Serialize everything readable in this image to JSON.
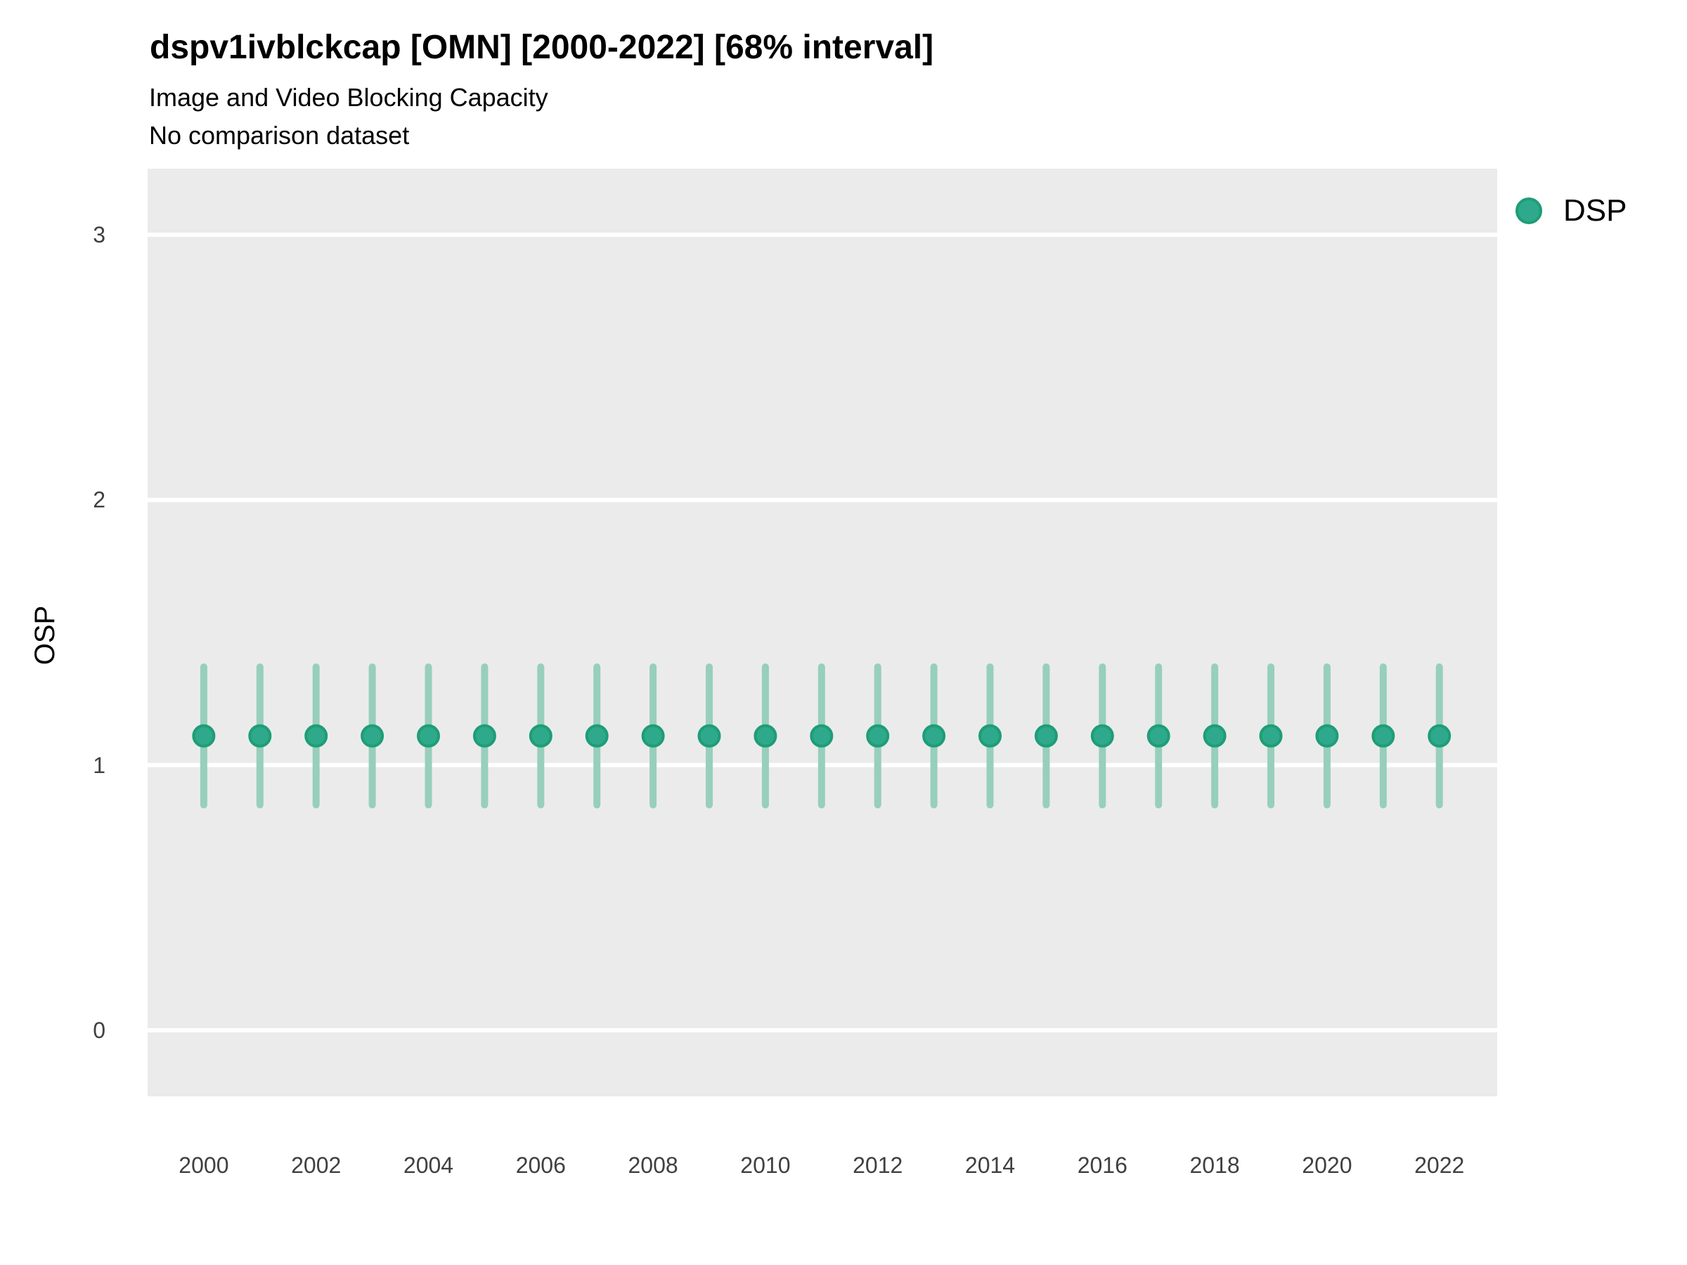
{
  "chart_data": {
    "type": "pointrange",
    "title": "dspv1ivblckcap [OMN] [2000-2022] [68% interval]",
    "subtitle": "Image and Video Blocking Capacity",
    "note": "No comparison dataset",
    "xlabel": "",
    "ylabel": "OSP",
    "interval_label": "68% interval",
    "xlim": [
      1999.0,
      2023.03
    ],
    "ylim": [
      -0.249,
      3.249
    ],
    "x_ticks": [
      2000,
      2002,
      2004,
      2006,
      2008,
      2010,
      2012,
      2014,
      2016,
      2018,
      2020,
      2022
    ],
    "y_ticks": [
      0,
      1,
      2,
      3
    ],
    "grid": "major-horizontal-only",
    "legend": {
      "position": "right",
      "entries": [
        {
          "label": "DSP",
          "color": "#2EA98B"
        }
      ]
    },
    "series": [
      {
        "name": "DSP",
        "x": [
          2000,
          2001,
          2002,
          2003,
          2004,
          2005,
          2006,
          2007,
          2008,
          2009,
          2010,
          2011,
          2012,
          2013,
          2014,
          2015,
          2016,
          2017,
          2018,
          2019,
          2020,
          2021,
          2022
        ],
        "y": [
          1.11,
          1.11,
          1.11,
          1.11,
          1.11,
          1.11,
          1.11,
          1.11,
          1.11,
          1.11,
          1.11,
          1.11,
          1.11,
          1.11,
          1.11,
          1.11,
          1.11,
          1.11,
          1.11,
          1.11,
          1.11,
          1.11,
          1.11
        ],
        "low": [
          0.85,
          0.85,
          0.85,
          0.85,
          0.85,
          0.85,
          0.85,
          0.85,
          0.85,
          0.85,
          0.85,
          0.85,
          0.85,
          0.85,
          0.85,
          0.85,
          0.85,
          0.85,
          0.85,
          0.85,
          0.85,
          0.85,
          0.85
        ],
        "high": [
          1.37,
          1.37,
          1.37,
          1.37,
          1.37,
          1.37,
          1.37,
          1.37,
          1.37,
          1.37,
          1.37,
          1.37,
          1.37,
          1.37,
          1.37,
          1.37,
          1.37,
          1.37,
          1.37,
          1.37,
          1.37,
          1.37,
          1.37
        ]
      }
    ],
    "colors": {
      "point_fill": "#2EA98B",
      "point_stroke": "#1F9D76",
      "interval": "#97CFBC",
      "panel_bg": "#EBEBEB",
      "grid": "#FFFFFF",
      "tick_text": "#404040"
    }
  }
}
